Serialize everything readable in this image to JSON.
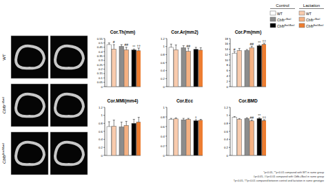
{
  "images": {
    "rows": [
      {
        "base": "WT",
        "sup": null
      },
      {
        "base": "Cbfb",
        "sup": "+/Δocl"
      },
      {
        "base": "Cbfb",
        "sup": "Δocl/Δocl"
      }
    ]
  },
  "legend": {
    "headers": [
      "Control",
      "Lactation"
    ],
    "rows": [
      {
        "base": "WT",
        "sup": null
      },
      {
        "base": "Cbfb",
        "sup": "+/Δocl"
      },
      {
        "base": "Cbfb",
        "sup": "Δocl/Δocl"
      }
    ],
    "colors": [
      [
        "#ffffff",
        "#f8cbad"
      ],
      [
        "#8c8c8c",
        "#f4b183"
      ],
      [
        "#000000",
        "#ed7d31"
      ]
    ]
  },
  "chart_data": [
    {
      "type": "bar",
      "title": "Cor.Th(mm)",
      "categories": [
        null,
        null,
        null,
        null,
        null,
        null
      ],
      "values": [
        0.48,
        0.43,
        0.46,
        0.42,
        0.42,
        0.41
      ],
      "errors": [
        0.02,
        0.05,
        0.02,
        0.03,
        0.01,
        0.03
      ],
      "annotations": [
        null,
        "#",
        null,
        "##",
        "**",
        "††"
      ],
      "colors": [
        "#ffffff",
        "#f8cbad",
        "#8c8c8c",
        "#f4b183",
        "#000000",
        "#ed7d31"
      ],
      "ylim": [
        0,
        0.55
      ],
      "yticks": [
        0,
        0.05,
        0.1,
        0.15,
        0.2,
        0.25,
        0.3,
        0.35,
        0.4,
        0.45,
        0.5,
        0.55
      ],
      "tick_labels": "y"
    },
    {
      "type": "bar",
      "title": "Cor.Ar(mm2)",
      "categories": [
        null,
        null,
        null,
        null,
        null,
        null
      ],
      "values": [
        0.98,
        0.92,
        0.97,
        0.88,
        0.93,
        0.91
      ],
      "errors": [
        0.08,
        0.12,
        0.05,
        0.08,
        0.05,
        0.06
      ],
      "annotations": [
        null,
        null,
        null,
        "##",
        null,
        null
      ],
      "colors": [
        "#ffffff",
        "#f8cbad",
        "#8c8c8c",
        "#f4b183",
        "#000000",
        "#ed7d31"
      ],
      "ylim": [
        0,
        1.2
      ],
      "yticks": [
        0,
        0.2,
        0.4,
        0.6,
        0.8,
        1,
        1.2
      ],
      "tick_labels": "y"
    },
    {
      "type": "bar",
      "title": "Cor.Pm(mm)",
      "categories": [
        null,
        null,
        null,
        null,
        null,
        null
      ],
      "values": [
        12.5,
        13.5,
        13.5,
        14.5,
        15.3,
        15.8
      ],
      "errors": [
        0.6,
        0.8,
        0.4,
        0.6,
        0.3,
        0.4
      ],
      "annotations": [
        "#",
        null,
        null,
        "##",
        "**",
        "††"
      ],
      "colors": [
        "#ffffff",
        "#f8cbad",
        "#8c8c8c",
        "#f4b183",
        "#000000",
        "#ed7d31"
      ],
      "ylim": [
        0,
        18
      ],
      "yticks": [
        0,
        2,
        4,
        6,
        8,
        10,
        12,
        14,
        16,
        18
      ],
      "tick_labels": "y"
    },
    {
      "type": "bar",
      "title": "Cor.MMI(mm4)",
      "categories": [
        null,
        null,
        null,
        null,
        null,
        null
      ],
      "values": [
        0.72,
        0.73,
        0.71,
        0.75,
        0.8,
        0.83
      ],
      "errors": [
        0.12,
        0.15,
        0.12,
        0.1,
        0.1,
        0.12
      ],
      "annotations": [
        null,
        null,
        null,
        null,
        null,
        null
      ],
      "colors": [
        "#ffffff",
        "#f8cbad",
        "#8c8c8c",
        "#f4b183",
        "#000000",
        "#ed7d31"
      ],
      "ylim": [
        0,
        1.2
      ],
      "yticks": [
        0,
        0.2,
        0.4,
        0.6,
        0.8,
        1,
        1.2
      ],
      "tick_labels": "y"
    },
    {
      "type": "bar",
      "title": "Cor.Ecc",
      "categories": [
        null,
        null,
        null,
        null,
        null,
        null
      ],
      "values": [
        0.75,
        0.76,
        0.74,
        0.75,
        0.72,
        0.73
      ],
      "errors": [
        0.02,
        0.02,
        0.03,
        0.02,
        0.02,
        0.02
      ],
      "annotations": [
        null,
        null,
        null,
        null,
        "†",
        null
      ],
      "colors": [
        "#ffffff",
        "#f8cbad",
        "#8c8c8c",
        "#f4b183",
        "#000000",
        "#ed7d31"
      ],
      "ylim": [
        0,
        1
      ],
      "yticks": [
        0,
        0.2,
        0.4,
        0.6,
        0.8,
        1
      ],
      "tick_labels": "y"
    },
    {
      "type": "bar",
      "title": "Cor.BMD",
      "categories": [
        null,
        null,
        null,
        null,
        null,
        null
      ],
      "values": [
        0.95,
        0.9,
        0.92,
        0.86,
        0.92,
        0.87
      ],
      "errors": [
        0.02,
        0.02,
        0.02,
        0.02,
        0.02,
        0.02
      ],
      "annotations": [
        null,
        null,
        null,
        "##",
        "**",
        "††"
      ],
      "colors": [
        "#ffffff",
        "#f8cbad",
        "#8c8c8c",
        "#f4b183",
        "#000000",
        "#ed7d31"
      ],
      "ylim": [
        0,
        1.2
      ],
      "yticks": [
        0,
        0.2,
        0.4,
        0.6,
        0.8,
        1,
        1.2
      ],
      "tick_labels": "y"
    }
  ],
  "footnotes": [
    "*p<0.05, **p<0.01 compared with WT in same group",
    "#p<0.05, ##p<0.01 compared with Cbfb+/Δocl in same group",
    "†p<0.05, ††p<0.01 compared between control and lactation in same genotype"
  ]
}
